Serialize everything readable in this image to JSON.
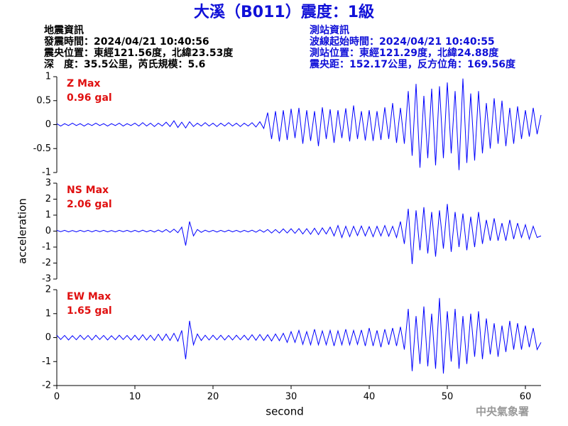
{
  "header": {
    "title": "大溪（B011）震度：1級",
    "left": [
      "地震資訊",
      "發震時間：2024/04/21 10:40:56",
      "震央位置：東經121.56度，北緯23.53度",
      "深　度：35.5公里，芮氏規模：5.6"
    ],
    "right": [
      "測站資訊",
      "波線起始時間：2024/04/21 10:40:55",
      "測站位置：東經121.29度，北緯24.88度",
      "震央距：152.17公里，反方位角：169.56度"
    ]
  },
  "chart_data": [
    {
      "type": "line",
      "annotations": [
        "Z Max",
        "0.96 gal"
      ],
      "xlim": [
        0,
        62
      ],
      "ylim": [
        -1,
        1
      ],
      "yticks": [
        -1,
        -0.5,
        0,
        0.5,
        1
      ],
      "x": [
        0,
        0.5,
        1,
        1.5,
        2,
        2.5,
        3,
        3.5,
        4,
        4.5,
        5,
        5.5,
        6,
        6.5,
        7,
        7.5,
        8,
        8.5,
        9,
        9.5,
        10,
        10.5,
        11,
        11.5,
        12,
        12.5,
        13,
        13.5,
        14,
        14.5,
        15,
        15.5,
        16,
        16.5,
        17,
        17.5,
        18,
        18.5,
        19,
        19.5,
        20,
        20.5,
        21,
        21.5,
        22,
        22.5,
        23,
        23.5,
        24,
        24.5,
        25,
        25.5,
        26,
        26.5,
        27,
        27.5,
        28,
        28.5,
        29,
        29.5,
        30,
        30.5,
        31,
        31.5,
        32,
        32.5,
        33,
        33.5,
        34,
        34.5,
        35,
        35.5,
        36,
        36.5,
        37,
        37.5,
        38,
        38.5,
        39,
        39.5,
        40,
        40.5,
        41,
        41.5,
        42,
        42.5,
        43,
        43.5,
        44,
        44.5,
        45,
        45.5,
        46,
        46.5,
        47,
        47.5,
        48,
        48.5,
        49,
        49.5,
        50,
        50.5,
        51,
        51.5,
        52,
        52.5,
        53,
        53.5,
        54,
        54.5,
        55,
        55.5,
        56,
        56.5,
        57,
        57.5,
        58,
        58.5,
        59,
        59.5,
        60,
        60.5,
        61,
        61.5,
        62
      ],
      "series": [
        {
          "color": "#0000ff",
          "values": [
            0.02,
            -0.03,
            0.02,
            -0.02,
            0.03,
            -0.02,
            0.02,
            -0.03,
            0.02,
            -0.02,
            0.03,
            -0.02,
            0.02,
            -0.03,
            0.02,
            -0.02,
            0.03,
            -0.03,
            0.02,
            -0.02,
            0.03,
            -0.03,
            0.04,
            -0.03,
            0.03,
            -0.04,
            0.03,
            -0.03,
            0.05,
            -0.04,
            0.08,
            -0.06,
            0.05,
            -0.07,
            0.06,
            -0.04,
            0.03,
            -0.03,
            0.04,
            -0.03,
            0.03,
            -0.04,
            0.03,
            -0.03,
            0.04,
            -0.03,
            0.03,
            -0.04,
            0.03,
            -0.03,
            0.04,
            -0.05,
            0.06,
            -0.08,
            0.25,
            -0.3,
            0.28,
            -0.35,
            0.3,
            -0.32,
            0.33,
            -0.28,
            0.35,
            -0.4,
            0.3,
            -0.34,
            0.28,
            -0.45,
            0.36,
            -0.3,
            0.32,
            -0.38,
            0.3,
            -0.28,
            0.34,
            -0.35,
            0.4,
            -0.3,
            0.28,
            -0.33,
            0.3,
            -0.34,
            0.28,
            -0.32,
            0.36,
            -0.3,
            0.45,
            -0.38,
            0.35,
            -0.4,
            0.7,
            -0.65,
            0.85,
            -0.9,
            0.6,
            -0.7,
            0.75,
            -0.85,
            0.8,
            -0.7,
            0.88,
            -0.6,
            0.7,
            -0.95,
            0.96,
            -0.8,
            0.65,
            -0.75,
            0.7,
            -0.6,
            0.45,
            -0.5,
            0.55,
            -0.4,
            0.5,
            -0.45,
            0.35,
            -0.4,
            0.38,
            -0.3,
            0.3,
            -0.25,
            0.35,
            -0.2,
            0.2
          ]
        }
      ]
    },
    {
      "type": "line",
      "annotations": [
        "NS Max",
        "2.06 gal"
      ],
      "ylabel": "acceleration",
      "xlim": [
        0,
        62
      ],
      "ylim": [
        -3,
        3
      ],
      "yticks": [
        -3,
        -2,
        -1,
        0,
        1,
        2,
        3
      ],
      "x": [
        0,
        0.5,
        1,
        1.5,
        2,
        2.5,
        3,
        3.5,
        4,
        4.5,
        5,
        5.5,
        6,
        6.5,
        7,
        7.5,
        8,
        8.5,
        9,
        9.5,
        10,
        10.5,
        11,
        11.5,
        12,
        12.5,
        13,
        13.5,
        14,
        14.5,
        15,
        15.5,
        16,
        16.5,
        17,
        17.5,
        18,
        18.5,
        19,
        19.5,
        20,
        20.5,
        21,
        21.5,
        22,
        22.5,
        23,
        23.5,
        24,
        24.5,
        25,
        25.5,
        26,
        26.5,
        27,
        27.5,
        28,
        28.5,
        29,
        29.5,
        30,
        30.5,
        31,
        31.5,
        32,
        32.5,
        33,
        33.5,
        34,
        34.5,
        35,
        35.5,
        36,
        36.5,
        37,
        37.5,
        38,
        38.5,
        39,
        39.5,
        40,
        40.5,
        41,
        41.5,
        42,
        42.5,
        43,
        43.5,
        44,
        44.5,
        45,
        45.5,
        46,
        46.5,
        47,
        47.5,
        48,
        48.5,
        49,
        49.5,
        50,
        50.5,
        51,
        51.5,
        52,
        52.5,
        53,
        53.5,
        54,
        54.5,
        55,
        55.5,
        56,
        56.5,
        57,
        57.5,
        58,
        58.5,
        59,
        59.5,
        60,
        60.5,
        61,
        61.5,
        62
      ],
      "series": [
        {
          "color": "#0000ff",
          "values": [
            0.05,
            -0.04,
            0.05,
            -0.05,
            0.04,
            -0.05,
            0.05,
            -0.04,
            0.05,
            -0.05,
            0.05,
            -0.04,
            0.05,
            -0.05,
            0.04,
            -0.05,
            0.05,
            -0.04,
            0.05,
            -0.05,
            0.05,
            -0.05,
            0.06,
            -0.05,
            0.05,
            -0.06,
            0.07,
            -0.06,
            0.1,
            -0.08,
            0.12,
            -0.1,
            0.25,
            -0.9,
            0.6,
            -0.3,
            0.1,
            -0.08,
            0.06,
            -0.05,
            0.05,
            -0.06,
            0.05,
            -0.05,
            0.06,
            -0.05,
            0.05,
            -0.06,
            0.05,
            -0.05,
            0.06,
            -0.07,
            0.08,
            -0.07,
            0.1,
            -0.12,
            0.1,
            -0.12,
            0.14,
            -0.12,
            0.15,
            -0.14,
            0.16,
            -0.18,
            0.15,
            -0.2,
            0.18,
            -0.22,
            0.2,
            -0.18,
            0.25,
            -0.3,
            0.35,
            -0.4,
            0.3,
            -0.35,
            0.3,
            -0.28,
            0.32,
            -0.3,
            0.28,
            -0.35,
            0.3,
            -0.3,
            0.35,
            -0.32,
            0.3,
            -0.4,
            0.6,
            -0.8,
            1.4,
            -2.06,
            1.3,
            -1.2,
            1.5,
            -1.4,
            1.2,
            -1.6,
            1.3,
            -1.1,
            1.7,
            -1.3,
            1.2,
            -1.0,
            1.1,
            -1.2,
            0.9,
            -1.0,
            1.2,
            -0.8,
            0.7,
            -0.6,
            0.8,
            -0.6,
            0.5,
            -0.6,
            0.7,
            -0.5,
            0.5,
            -0.4,
            0.4,
            -0.5,
            0.3,
            -0.4,
            -0.3
          ]
        }
      ]
    },
    {
      "type": "line",
      "annotations": [
        "EW Max",
        "1.65 gal"
      ],
      "xlabel": "second",
      "xlim": [
        0,
        62
      ],
      "xticks": [
        0,
        10,
        20,
        30,
        40,
        50,
        60
      ],
      "ylim": [
        -2,
        2
      ],
      "yticks": [
        -2,
        -1,
        0,
        1,
        2
      ],
      "x": [
        0,
        0.5,
        1,
        1.5,
        2,
        2.5,
        3,
        3.5,
        4,
        4.5,
        5,
        5.5,
        6,
        6.5,
        7,
        7.5,
        8,
        8.5,
        9,
        9.5,
        10,
        10.5,
        11,
        11.5,
        12,
        12.5,
        13,
        13.5,
        14,
        14.5,
        15,
        15.5,
        16,
        16.5,
        17,
        17.5,
        18,
        18.5,
        19,
        19.5,
        20,
        20.5,
        21,
        21.5,
        22,
        22.5,
        23,
        23.5,
        24,
        24.5,
        25,
        25.5,
        26,
        26.5,
        27,
        27.5,
        28,
        28.5,
        29,
        29.5,
        30,
        30.5,
        31,
        31.5,
        32,
        32.5,
        33,
        33.5,
        34,
        34.5,
        35,
        35.5,
        36,
        36.5,
        37,
        37.5,
        38,
        38.5,
        39,
        39.5,
        40,
        40.5,
        41,
        41.5,
        42,
        42.5,
        43,
        43.5,
        44,
        44.5,
        45,
        45.5,
        46,
        46.5,
        47,
        47.5,
        48,
        48.5,
        49,
        49.5,
        50,
        50.5,
        51,
        51.5,
        52,
        52.5,
        53,
        53.5,
        54,
        54.5,
        55,
        55.5,
        56,
        56.5,
        57,
        57.5,
        58,
        58.5,
        59,
        59.5,
        60,
        60.5,
        61,
        61.5,
        62
      ],
      "series": [
        {
          "color": "#0000ff",
          "values": [
            0.1,
            -0.08,
            0.09,
            -0.1,
            0.08,
            -0.09,
            0.1,
            -0.08,
            0.09,
            -0.1,
            0.1,
            -0.08,
            0.09,
            -0.1,
            0.08,
            -0.09,
            0.1,
            -0.08,
            0.09,
            -0.1,
            0.1,
            -0.1,
            0.12,
            -0.1,
            0.1,
            -0.12,
            0.14,
            -0.12,
            0.15,
            -0.12,
            0.18,
            -0.15,
            0.3,
            -0.9,
            0.7,
            -0.3,
            0.15,
            -0.12,
            0.1,
            -0.1,
            0.1,
            -0.09,
            0.1,
            -0.1,
            0.09,
            -0.1,
            0.1,
            -0.09,
            0.1,
            -0.1,
            0.12,
            -0.11,
            0.13,
            -0.12,
            0.12,
            -0.14,
            0.15,
            -0.13,
            0.18,
            -0.2,
            0.25,
            -0.2,
            0.3,
            -0.28,
            0.25,
            -0.3,
            0.35,
            -0.3,
            0.28,
            -0.3,
            0.3,
            -0.35,
            0.28,
            -0.3,
            0.35,
            -0.3,
            0.3,
            -0.28,
            0.32,
            -0.35,
            0.4,
            -0.35,
            0.3,
            -0.4,
            0.35,
            -0.3,
            0.4,
            -0.35,
            0.45,
            -0.5,
            1.2,
            -1.4,
            0.9,
            -1.1,
            1.3,
            -1.2,
            1.0,
            -1.3,
            1.65,
            -1.5,
            1.1,
            -1.0,
            1.2,
            -1.3,
            0.9,
            -1.1,
            1.0,
            -0.8,
            1.1,
            -0.9,
            0.8,
            -0.7,
            0.6,
            -0.8,
            0.5,
            -0.6,
            0.7,
            -0.5,
            0.6,
            -0.5,
            0.5,
            -0.4,
            0.4,
            -0.5,
            -0.2
          ]
        }
      ]
    }
  ],
  "footer": "中央氣象署"
}
